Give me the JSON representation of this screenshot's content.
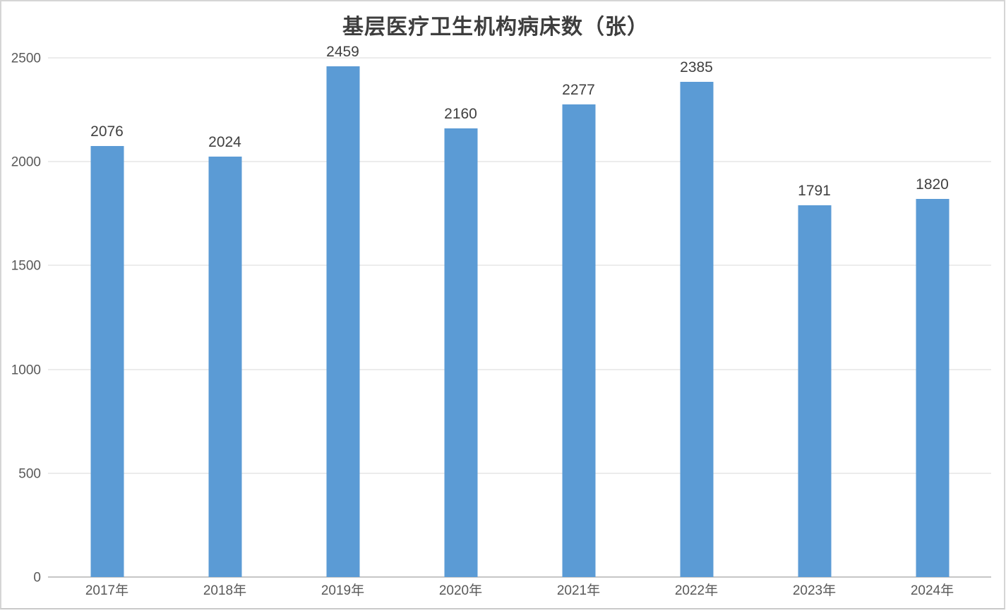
{
  "chart_data": {
    "type": "bar",
    "title": "基层医疗卫生机构病床数（张）",
    "categories": [
      "2017年",
      "2018年",
      "2019年",
      "2020年",
      "2021年",
      "2022年",
      "2023年",
      "2024年"
    ],
    "values": [
      2076,
      2024,
      2459,
      2160,
      2277,
      2385,
      1791,
      1820
    ],
    "value_labels_shown": true,
    "xlabel": "",
    "ylabel": "",
    "ylim": [
      0,
      2500
    ],
    "yticks": [
      0,
      500,
      1000,
      1500,
      2000,
      2500
    ],
    "grid": "horizontal",
    "legend": "none",
    "colors": {
      "bar": "#5B9BD5",
      "gridline": "#D9D9D9",
      "axis_line": "#C6C6C6",
      "title": "#3E3E3E",
      "value_label": "#404040",
      "tick_label": "#595959",
      "background": "#FFFFFF",
      "frame_border": "#D5D5D5"
    }
  }
}
